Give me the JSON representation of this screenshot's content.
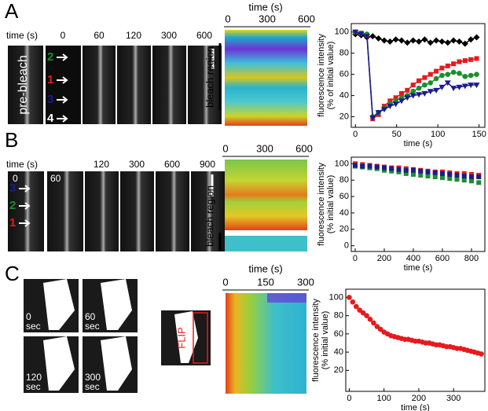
{
  "panels": [
    {
      "label": "A",
      "images": {
        "time_label": "time (s)",
        "times": [
          "0",
          "60",
          "120",
          "300",
          "600"
        ],
        "side_label": "pre-bleach",
        "markers": [
          "2",
          "1",
          "3",
          "4"
        ]
      },
      "kymograph": {
        "axis_label": "time (s)",
        "ticks": [
          "0",
          "300",
          "600"
        ],
        "region_label": "bleach region"
      }
    },
    {
      "label": "B",
      "images": {
        "time_label": "time (s)",
        "times": [
          "0",
          "60",
          "120",
          "300",
          "600",
          "900"
        ],
        "markers": [
          "3",
          "2",
          "1"
        ]
      },
      "kymograph": {
        "ticks": [
          "0",
          "300",
          "600"
        ],
        "region_label": "bleach region"
      }
    },
    {
      "label": "C",
      "images": {
        "times": [
          "0",
          "60",
          "120",
          "300"
        ],
        "unit": "sec",
        "roi_label": "FLIP"
      },
      "kymograph": {
        "axis_label": "time (s)",
        "ticks": [
          "0",
          "150",
          "300"
        ]
      }
    }
  ],
  "chart_data": [
    {
      "type": "line",
      "xlabel": "time (s)",
      "ylabel": [
        "fluorescence intensity",
        "(% of initial value)"
      ],
      "x": [
        0,
        7,
        14,
        21,
        28,
        35,
        42,
        49,
        56,
        63,
        70,
        77,
        84,
        91,
        98,
        105,
        112,
        119,
        126,
        133,
        140,
        147
      ],
      "xlim": [
        -5,
        157
      ],
      "xticks": [
        0,
        50,
        100,
        150
      ],
      "ylim": [
        10,
        108
      ],
      "yticks": [
        20,
        40,
        60,
        80,
        100
      ],
      "series": [
        {
          "color": "#000000",
          "marker": "diamond",
          "values": [
            98,
            97,
            95,
            96,
            94,
            92,
            91,
            93,
            92,
            90,
            92,
            91,
            93,
            90,
            92,
            91,
            90,
            92,
            91,
            89,
            93,
            95
          ]
        },
        {
          "color": "#e8191d",
          "marker": "square",
          "values": [
            100,
            99,
            97,
            18,
            22,
            30,
            35,
            38,
            42,
            45,
            50,
            54,
            57,
            60,
            63,
            66,
            68,
            70,
            72,
            73,
            74,
            75
          ]
        },
        {
          "color": "#1a8f2c",
          "marker": "circle",
          "values": [
            100,
            99,
            98,
            20,
            24,
            28,
            32,
            35,
            38,
            40,
            44,
            47,
            50,
            52,
            56,
            59,
            60,
            62,
            61,
            58,
            59,
            60
          ]
        },
        {
          "color": "#1c1c8c",
          "marker": "triangle",
          "values": [
            100,
            98,
            96,
            19,
            24,
            27,
            30,
            32,
            35,
            38,
            40,
            41,
            42,
            44,
            45,
            48,
            52,
            47,
            48,
            49,
            50,
            50
          ]
        }
      ]
    },
    {
      "type": "scatter",
      "xlabel": "time (s)",
      "ylabel": [
        "fluorescence intensity",
        "(% initial value)"
      ],
      "x": [
        0,
        50,
        100,
        150,
        200,
        250,
        300,
        350,
        400,
        450,
        500,
        550,
        600,
        650,
        700,
        750,
        800,
        850
      ],
      "xlim": [
        -27,
        892
      ],
      "xticks": [
        0,
        200,
        400,
        600,
        800
      ],
      "ylim": [
        -7,
        108
      ],
      "yticks": [
        0,
        20,
        40,
        60,
        80,
        100
      ],
      "series": [
        {
          "color": "#1a8f2c",
          "marker": "square",
          "values": [
            97,
            96,
            95,
            94,
            92,
            91,
            90,
            88,
            87,
            86,
            85,
            84,
            83,
            82,
            81,
            80,
            79,
            77
          ]
        },
        {
          "color": "#e8191d",
          "marker": "square",
          "values": [
            100,
            99,
            98,
            97,
            96,
            95,
            95,
            94,
            93,
            92,
            91,
            90,
            90,
            89,
            88,
            88,
            87,
            86
          ]
        },
        {
          "color": "#1c1c8c",
          "marker": "square",
          "values": [
            98,
            97,
            97,
            96,
            95,
            94,
            93,
            92,
            92,
            91,
            90,
            89,
            88,
            87,
            86,
            85,
            84,
            84
          ]
        }
      ]
    },
    {
      "type": "scatter",
      "xlabel": "time (s)",
      "ylabel": [
        "fluorescence intensity",
        "(% initial value)"
      ],
      "x": [
        0,
        10,
        20,
        30,
        40,
        50,
        60,
        70,
        80,
        90,
        100,
        110,
        120,
        130,
        140,
        150,
        160,
        170,
        180,
        190,
        200,
        210,
        220,
        230,
        240,
        250,
        260,
        270,
        280,
        290,
        300,
        310,
        320,
        330,
        340,
        350,
        360,
        370,
        380
      ],
      "xlim": [
        -10,
        390
      ],
      "xticks": [
        0,
        100,
        200,
        300
      ],
      "ylim": [
        -3,
        109
      ],
      "yticks": [
        20,
        40,
        60,
        80,
        100
      ],
      "series": [
        {
          "color": "#e8191d",
          "marker": "circle",
          "values": [
            100,
            95,
            90,
            86,
            83,
            80,
            76,
            72,
            68,
            65,
            62,
            60,
            58,
            57,
            56,
            55,
            54,
            54,
            53,
            52,
            52,
            51,
            50,
            50,
            49,
            48,
            48,
            47,
            46,
            46,
            45,
            44,
            44,
            43,
            42,
            41,
            40,
            39,
            38
          ]
        }
      ]
    }
  ]
}
